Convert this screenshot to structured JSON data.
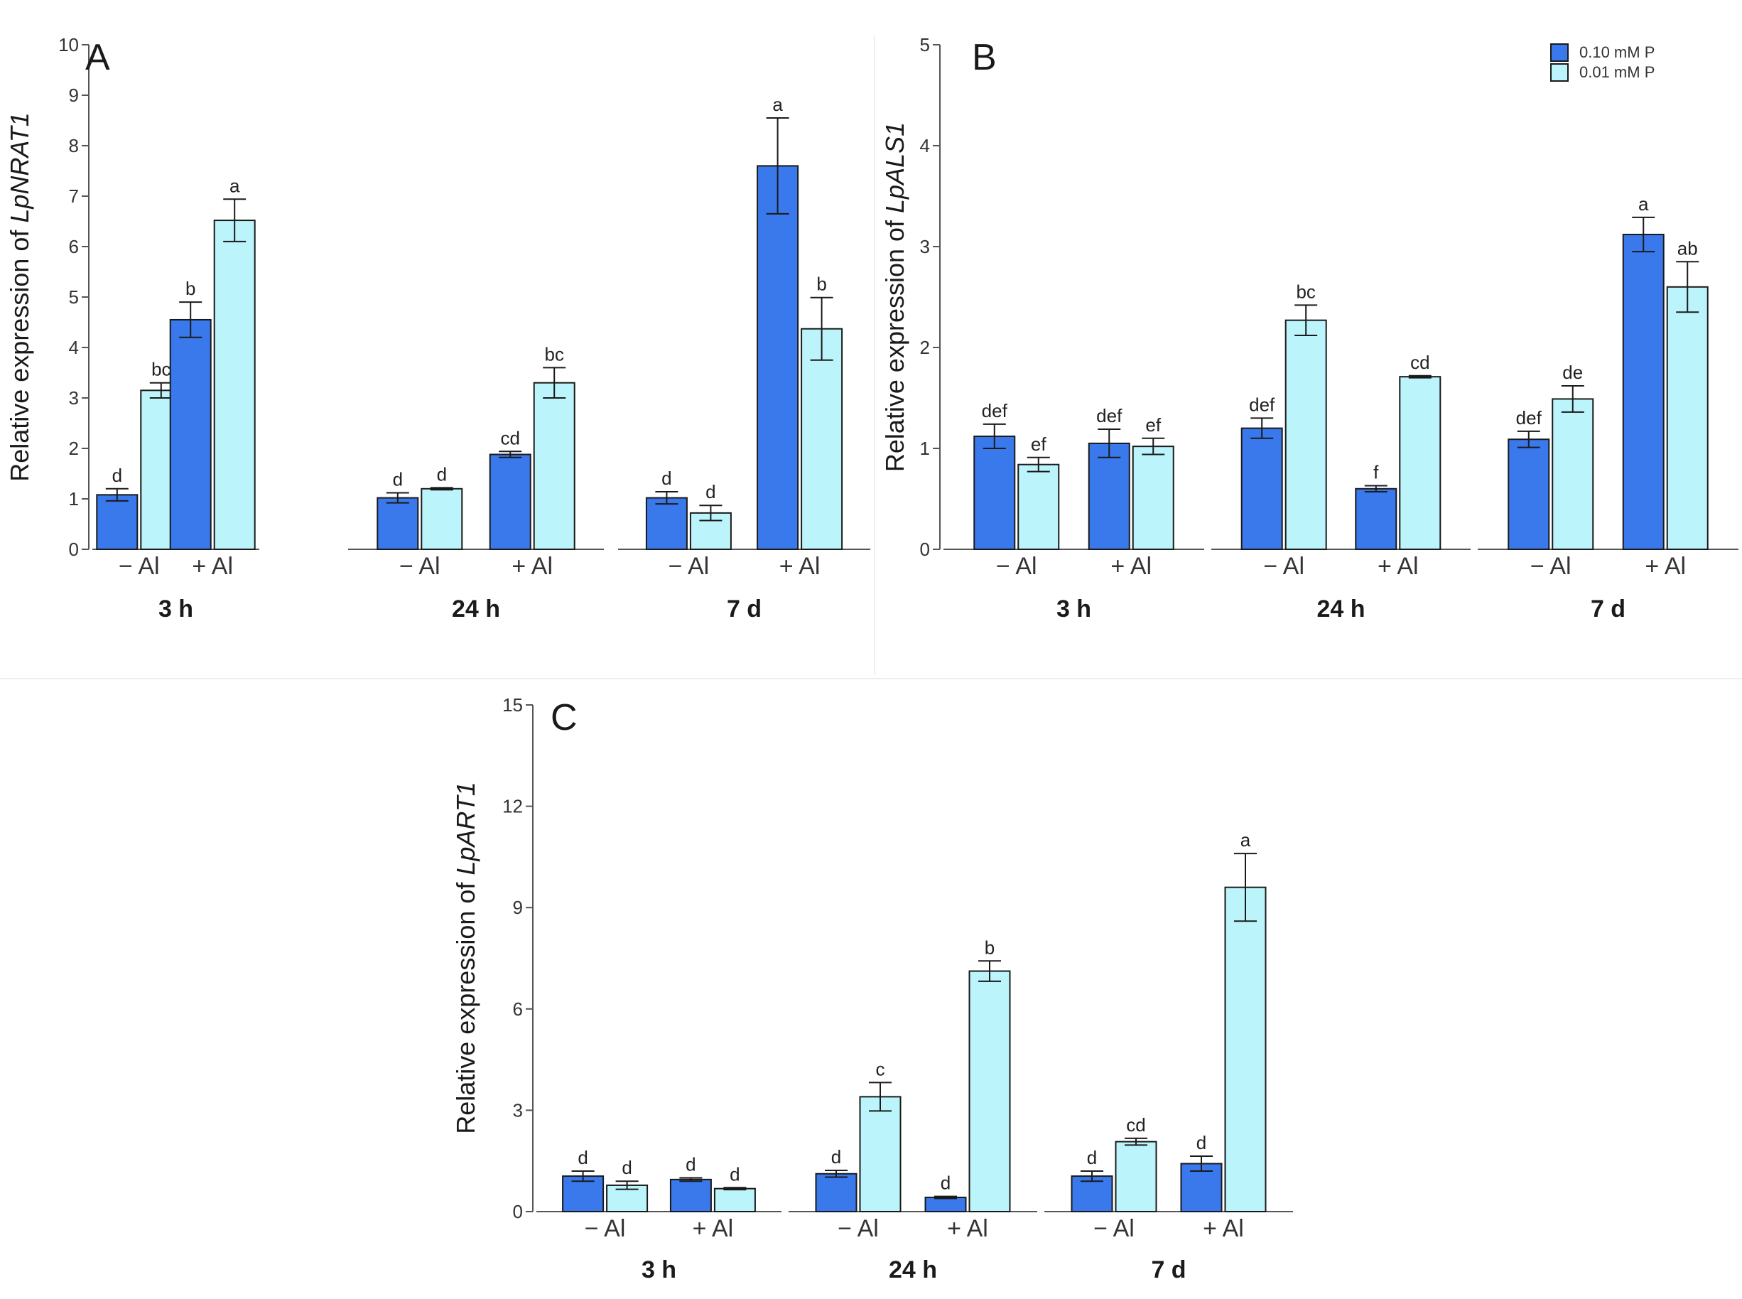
{
  "colors": {
    "high_p": "#3a79ec",
    "low_p": "#bcf4fb",
    "axis": "#555555",
    "stroke": "#1a1a1a"
  },
  "legend": {
    "items": [
      "0.10 mM P",
      "0.01 mM P"
    ]
  },
  "chart_data": [
    {
      "type": "bar",
      "panel": "A",
      "ylabel": "Relative expression of",
      "gene": "LpNRAT1",
      "ylim": [
        0,
        10
      ],
      "yticks": [
        0,
        1,
        2,
        3,
        4,
        5,
        6,
        7,
        8,
        9,
        10
      ],
      "time_points": [
        "3 h",
        "24 h",
        "7 d"
      ],
      "treatments": [
        "− Al",
        "+ Al"
      ],
      "series": [
        {
          "name": "0.10 mM P",
          "values": [
            [
              1.08,
              4.55
            ],
            [
              1.02,
              1.88
            ],
            [
              1.02,
              7.6
            ]
          ],
          "errors": [
            [
              0.12,
              0.35
            ],
            [
              0.1,
              0.06
            ],
            [
              0.12,
              0.95
            ]
          ],
          "labels": [
            [
              "d",
              "b"
            ],
            [
              "d",
              "cd"
            ],
            [
              "d",
              "a"
            ]
          ]
        },
        {
          "name": "0.01 mM P",
          "values": [
            [
              3.15,
              6.52
            ],
            [
              1.2,
              3.3
            ],
            [
              0.72,
              4.37
            ]
          ],
          "errors": [
            [
              0.15,
              0.42
            ],
            [
              0.02,
              0.3
            ],
            [
              0.15,
              0.62
            ]
          ],
          "labels": [
            [
              "bc",
              "a"
            ],
            [
              "d",
              "bc"
            ],
            [
              "d",
              "b"
            ]
          ]
        }
      ]
    },
    {
      "type": "bar",
      "panel": "B",
      "ylabel": "Relative expression of",
      "gene": "LpALS1",
      "ylim": [
        0,
        5
      ],
      "yticks": [
        0,
        1,
        2,
        3,
        4,
        5
      ],
      "time_points": [
        "3 h",
        "24 h",
        "7 d"
      ],
      "treatments": [
        "− Al",
        "+ Al"
      ],
      "series": [
        {
          "name": "0.10 mM P",
          "values": [
            [
              1.12,
              1.05
            ],
            [
              1.2,
              0.6
            ],
            [
              1.09,
              3.12
            ]
          ],
          "errors": [
            [
              0.12,
              0.14
            ],
            [
              0.1,
              0.03
            ],
            [
              0.08,
              0.17
            ]
          ],
          "labels": [
            [
              "def",
              "def"
            ],
            [
              "def",
              "f"
            ],
            [
              "def",
              "a"
            ]
          ]
        },
        {
          "name": "0.01 mM P",
          "values": [
            [
              0.84,
              1.02
            ],
            [
              2.27,
              1.71
            ],
            [
              1.49,
              2.6
            ]
          ],
          "errors": [
            [
              0.07,
              0.08
            ],
            [
              0.15,
              0.01
            ],
            [
              0.13,
              0.25
            ]
          ],
          "labels": [
            [
              "ef",
              "ef"
            ],
            [
              "bc",
              "cd"
            ],
            [
              "de",
              "ab"
            ]
          ]
        }
      ]
    },
    {
      "type": "bar",
      "panel": "C",
      "ylabel": "Relative expression of",
      "gene": "LpART1",
      "ylim": [
        0,
        15
      ],
      "yticks": [
        0,
        3,
        6,
        9,
        12,
        15
      ],
      "time_points": [
        "3 h",
        "24 h",
        "7 d"
      ],
      "treatments": [
        "− Al",
        "+ Al"
      ],
      "series": [
        {
          "name": "0.10 mM P",
          "values": [
            [
              1.05,
              0.95
            ],
            [
              1.12,
              0.42
            ],
            [
              1.05,
              1.42
            ]
          ],
          "errors": [
            [
              0.15,
              0.05
            ],
            [
              0.1,
              0.03
            ],
            [
              0.15,
              0.22
            ]
          ],
          "labels": [
            [
              "d",
              "d"
            ],
            [
              "d",
              "d"
            ],
            [
              "d",
              "d"
            ]
          ]
        },
        {
          "name": "0.01 mM P",
          "values": [
            [
              0.78,
              0.68
            ],
            [
              3.4,
              7.12
            ],
            [
              2.07,
              9.6
            ]
          ],
          "errors": [
            [
              0.12,
              0.03
            ],
            [
              0.42,
              0.3
            ],
            [
              0.1,
              1.0
            ]
          ],
          "labels": [
            [
              "d",
              "d"
            ],
            [
              "c",
              "b"
            ],
            [
              "cd",
              "a"
            ]
          ]
        }
      ]
    }
  ]
}
